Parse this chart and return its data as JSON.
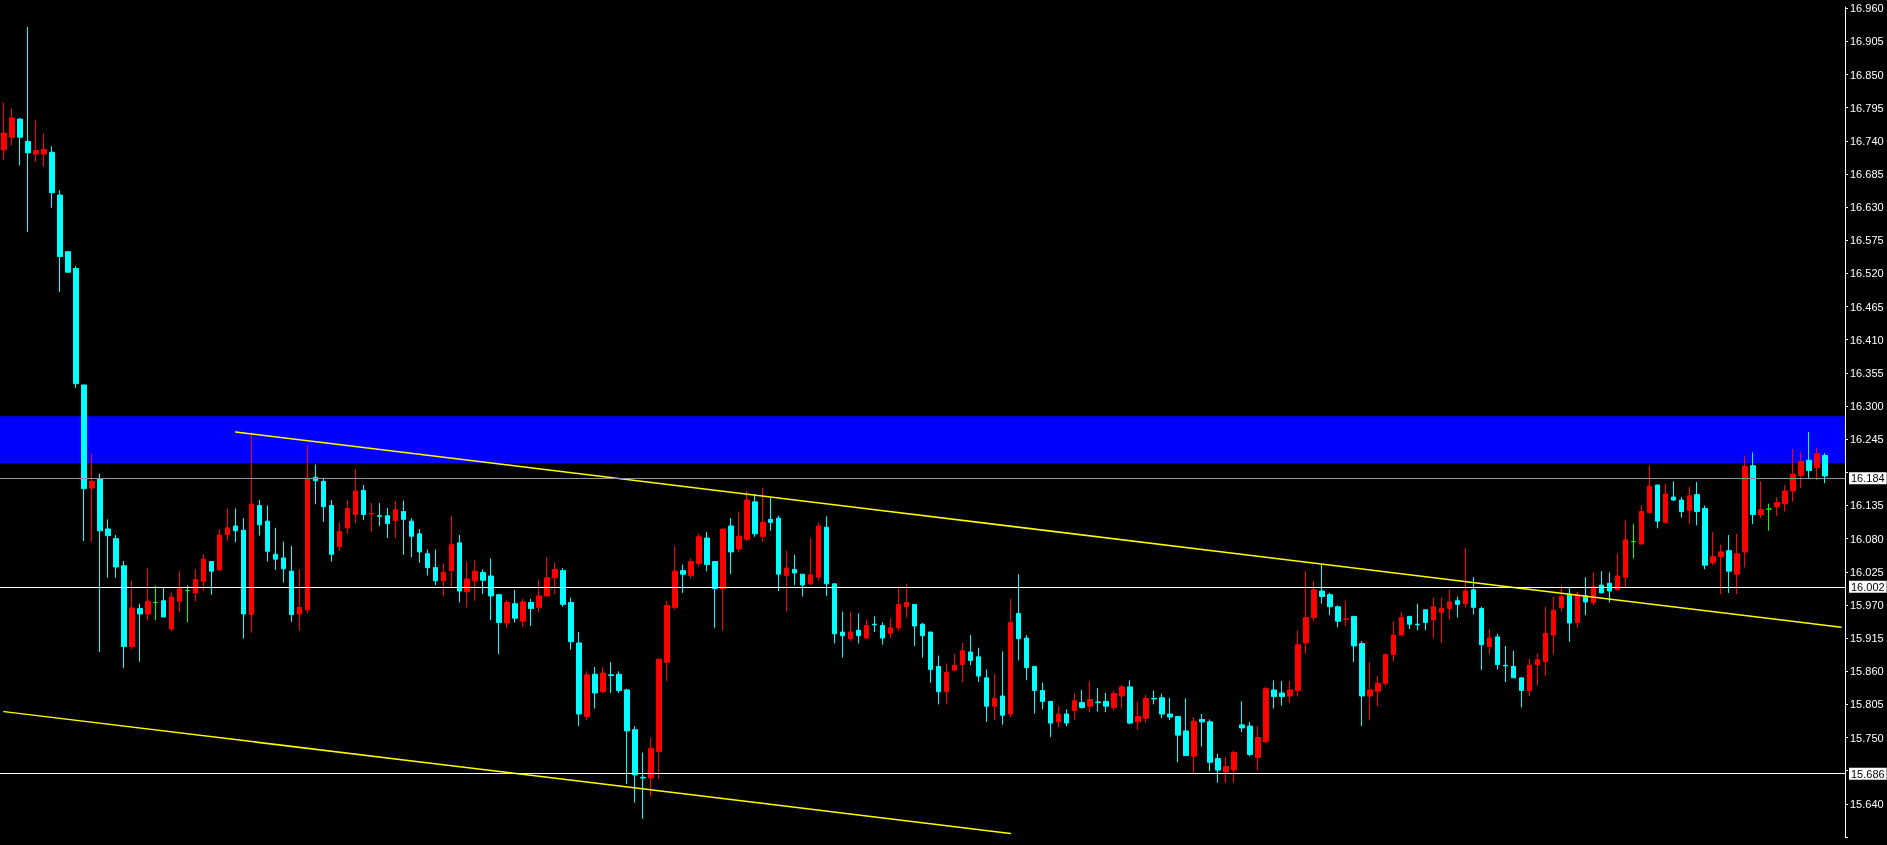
{
  "chart_data": {
    "type": "candlestick",
    "categories": [
      null,
      null,
      null,
      null,
      null,
      null,
      null,
      null,
      null,
      null,
      null,
      null,
      null,
      null,
      null,
      null,
      null,
      null,
      null,
      null,
      null,
      null,
      null,
      null,
      null,
      null,
      null,
      null,
      null,
      null,
      null,
      null,
      null,
      null,
      null,
      null,
      null,
      null,
      null,
      null,
      null,
      null,
      null,
      null,
      null,
      null,
      null,
      null,
      null,
      null,
      null,
      null,
      null,
      null,
      null,
      null,
      null,
      null,
      null,
      null,
      null,
      null,
      null,
      null,
      null,
      null,
      null,
      null,
      null,
      null,
      null,
      null,
      null,
      null,
      null,
      null,
      null,
      null,
      null,
      null,
      null,
      null,
      null,
      null,
      null,
      null,
      null,
      null,
      null,
      null,
      null,
      null,
      null,
      null,
      null,
      null,
      null,
      null,
      null,
      null,
      null,
      null,
      null,
      null,
      null,
      null,
      null,
      null,
      null,
      null,
      null,
      null,
      null,
      null,
      null,
      null,
      null,
      null,
      null,
      null,
      null,
      null,
      null,
      null,
      null,
      null,
      null,
      null,
      null,
      null,
      null,
      null,
      null,
      null,
      null,
      null,
      null,
      null,
      null,
      null,
      null,
      null,
      null,
      null,
      null,
      null,
      null,
      null,
      null,
      null,
      null,
      null,
      null,
      null,
      null,
      null,
      null,
      null,
      null,
      null,
      null,
      null,
      null,
      null,
      null,
      null,
      null,
      null,
      null,
      null,
      null,
      null,
      null,
      null,
      null,
      null,
      null,
      null,
      null,
      null,
      null,
      null,
      null,
      null,
      null,
      null,
      null,
      null,
      null,
      null,
      null,
      null,
      null,
      null,
      null,
      null,
      null,
      null,
      null,
      null,
      null,
      null,
      null,
      null,
      null,
      null,
      null,
      null,
      null,
      null,
      null,
      null,
      null,
      null,
      null,
      null,
      null,
      null,
      null,
      null,
      null,
      null,
      null,
      null,
      null,
      null,
      null,
      null,
      null,
      null,
      null
    ],
    "ohlc": [
      [
        16.725,
        16.804,
        16.708,
        16.753
      ],
      [
        16.746,
        16.794,
        16.732,
        16.778
      ],
      [
        16.776,
        16.778,
        16.699,
        16.746
      ],
      [
        16.739,
        16.929,
        16.589,
        16.72
      ],
      [
        16.718,
        16.775,
        16.705,
        16.724
      ],
      [
        16.718,
        16.752,
        16.697,
        16.726
      ],
      [
        16.721,
        16.731,
        16.629,
        16.654
      ],
      [
        16.65,
        16.658,
        16.489,
        16.548
      ],
      [
        16.556,
        16.556,
        16.522,
        16.522
      ],
      [
        16.528,
        16.532,
        16.33,
        16.337
      ],
      [
        16.335,
        16.335,
        16.076,
        16.163
      ],
      [
        16.164,
        16.221,
        16.075,
        16.175
      ],
      [
        16.179,
        16.188,
        15.892,
        16.093
      ],
      [
        16.096,
        16.112,
        16.015,
        16.085
      ],
      [
        16.08,
        16.086,
        16.015,
        16.033
      ],
      [
        16.035,
        16.043,
        15.865,
        15.901
      ],
      [
        15.901,
        16.01,
        15.896,
        15.965
      ],
      [
        15.964,
        15.972,
        15.876,
        15.955
      ],
      [
        15.955,
        16.031,
        15.944,
        15.976
      ],
      [
        15.974,
        16.002,
        15.945,
        15.974
      ],
      [
        15.977,
        15.998,
        15.95,
        15.95
      ],
      [
        15.93,
        15.991,
        15.927,
        15.983
      ],
      [
        15.976,
        16.026,
        15.958,
        15.997
      ],
      [
        15.994,
        16.002,
        15.941,
        15.994
      ],
      [
        15.99,
        16.029,
        15.976,
        16.012
      ],
      [
        16.009,
        16.054,
        15.994,
        16.046
      ],
      [
        16.042,
        16.042,
        15.987,
        16.026
      ],
      [
        16.028,
        16.096,
        16.026,
        16.086
      ],
      [
        16.087,
        16.13,
        16.076,
        16.098
      ],
      [
        16.101,
        16.13,
        16.074,
        16.093
      ],
      [
        16.094,
        16.114,
        15.914,
        15.955
      ],
      [
        15.954,
        16.256,
        15.924,
        16.137
      ],
      [
        16.135,
        16.144,
        16.085,
        16.103
      ],
      [
        16.109,
        16.135,
        16.042,
        16.059
      ],
      [
        16.054,
        16.098,
        16.028,
        16.046
      ],
      [
        16.048,
        16.075,
        16.007,
        16.03
      ],
      [
        16.026,
        16.068,
        15.942,
        15.954
      ],
      [
        15.955,
        16.029,
        15.927,
        15.966
      ],
      [
        15.962,
        16.235,
        15.956,
        16.18
      ],
      [
        16.182,
        16.203,
        16.137,
        16.176
      ],
      [
        16.175,
        16.181,
        16.108,
        16.133
      ],
      [
        16.135,
        16.144,
        16.042,
        16.054
      ],
      [
        16.067,
        16.107,
        16.06,
        16.092
      ],
      [
        16.098,
        16.144,
        16.088,
        16.13
      ],
      [
        16.12,
        16.195,
        16.106,
        16.159
      ],
      [
        16.16,
        16.169,
        16.111,
        16.12
      ],
      [
        16.121,
        16.139,
        16.091,
        16.122
      ],
      [
        16.118,
        16.139,
        16.101,
        16.117
      ],
      [
        16.118,
        16.131,
        16.081,
        16.105
      ],
      [
        16.11,
        16.143,
        16.081,
        16.128
      ],
      [
        16.125,
        16.143,
        16.053,
        16.112
      ],
      [
        16.109,
        16.114,
        16.049,
        16.084
      ],
      [
        16.088,
        16.096,
        16.04,
        16.058
      ],
      [
        16.055,
        16.062,
        16.019,
        16.032
      ],
      [
        16.032,
        16.062,
        16.003,
        16.01
      ],
      [
        16.01,
        16.039,
        15.984,
        16.024
      ],
      [
        16.027,
        16.118,
        16.0,
        16.07
      ],
      [
        16.073,
        16.086,
        15.974,
        15.993
      ],
      [
        15.992,
        16.042,
        15.966,
        16.013
      ],
      [
        16.01,
        16.044,
        15.977,
        16.026
      ],
      [
        16.024,
        16.029,
        15.988,
        16.011
      ],
      [
        16.018,
        16.047,
        15.945,
        15.985
      ],
      [
        15.987,
        15.988,
        15.888,
        15.941
      ],
      [
        15.94,
        15.979,
        15.932,
        15.974
      ],
      [
        15.972,
        15.995,
        15.941,
        15.948
      ],
      [
        15.943,
        15.98,
        15.933,
        15.975
      ],
      [
        15.974,
        15.98,
        15.935,
        15.964
      ],
      [
        15.966,
        16.011,
        15.958,
        15.985
      ],
      [
        15.985,
        16.049,
        15.984,
        16.015
      ],
      [
        16.015,
        16.04,
        15.988,
        16.029
      ],
      [
        16.027,
        16.031,
        15.967,
        15.971
      ],
      [
        15.974,
        15.982,
        15.896,
        15.909
      ],
      [
        15.907,
        15.925,
        15.769,
        15.789
      ],
      [
        15.785,
        15.86,
        15.779,
        15.854
      ],
      [
        15.855,
        15.867,
        15.798,
        15.824
      ],
      [
        15.826,
        15.867,
        15.824,
        15.857
      ],
      [
        15.854,
        15.875,
        15.824,
        15.853
      ],
      [
        15.855,
        15.86,
        15.824,
        15.828
      ],
      [
        15.829,
        15.831,
        15.673,
        15.761
      ],
      [
        15.763,
        15.769,
        15.642,
        15.688
      ],
      [
        15.684,
        15.725,
        15.615,
        15.683
      ],
      [
        15.683,
        15.75,
        15.652,
        15.732
      ],
      [
        15.727,
        15.881,
        15.681,
        15.88
      ],
      [
        15.875,
        15.977,
        15.844,
        15.969
      ],
      [
        15.966,
        16.068,
        15.962,
        16.026
      ],
      [
        16.027,
        16.037,
        15.99,
        16.021
      ],
      [
        16.019,
        16.047,
        16.014,
        16.042
      ],
      [
        16.039,
        16.088,
        16.034,
        16.083
      ],
      [
        16.081,
        16.091,
        16.026,
        16.037
      ],
      [
        16.042,
        16.042,
        15.932,
        15.997
      ],
      [
        15.997,
        16.096,
        15.927,
        16.096
      ],
      [
        16.101,
        16.114,
        16.021,
        16.058
      ],
      [
        16.063,
        16.125,
        16.058,
        16.084
      ],
      [
        16.079,
        16.159,
        16.076,
        16.144
      ],
      [
        16.141,
        16.154,
        16.083,
        16.088
      ],
      [
        16.084,
        16.164,
        16.075,
        16.107
      ],
      [
        16.112,
        16.148,
        16.093,
        16.107
      ],
      [
        16.114,
        16.118,
        15.993,
        16.021
      ],
      [
        16.019,
        16.06,
        15.959,
        16.031
      ],
      [
        16.029,
        16.053,
        16.003,
        16.023
      ],
      [
        16.021,
        16.021,
        15.984,
        16.003
      ],
      [
        16.005,
        16.081,
        16.003,
        16.02
      ],
      [
        16.016,
        16.107,
        16.01,
        16.101
      ],
      [
        16.099,
        16.117,
        15.985,
        16.005
      ],
      [
        16.005,
        16.006,
        15.906,
        15.922
      ],
      [
        15.925,
        15.959,
        15.883,
        15.919
      ],
      [
        15.914,
        15.959,
        15.91,
        15.925
      ],
      [
        15.928,
        15.956,
        15.906,
        15.919
      ],
      [
        15.915,
        15.946,
        15.914,
        15.936
      ],
      [
        15.938,
        15.951,
        15.925,
        15.937
      ],
      [
        15.936,
        15.941,
        15.904,
        15.915
      ],
      [
        15.923,
        15.948,
        15.915,
        15.932
      ],
      [
        15.932,
        16.001,
        15.927,
        15.971
      ],
      [
        15.967,
        16.005,
        15.949,
        15.974
      ],
      [
        15.971,
        15.971,
        15.902,
        15.935
      ],
      [
        15.938,
        15.94,
        15.883,
        15.919
      ],
      [
        15.925,
        15.925,
        15.841,
        15.863
      ],
      [
        15.868,
        15.886,
        15.805,
        15.826
      ],
      [
        15.826,
        15.873,
        15.805,
        15.858
      ],
      [
        15.862,
        15.889,
        15.86,
        15.87
      ],
      [
        15.871,
        15.907,
        15.842,
        15.894
      ],
      [
        15.892,
        15.92,
        15.87,
        15.878
      ],
      [
        15.884,
        15.899,
        15.842,
        15.852
      ],
      [
        15.849,
        15.863,
        15.776,
        15.802
      ],
      [
        15.802,
        15.855,
        15.779,
        15.815
      ],
      [
        15.819,
        15.893,
        15.771,
        15.787
      ],
      [
        15.789,
        15.98,
        15.784,
        15.941
      ],
      [
        15.956,
        16.021,
        15.878,
        15.914
      ],
      [
        15.915,
        15.92,
        15.845,
        15.866
      ],
      [
        15.868,
        15.868,
        15.79,
        15.828
      ],
      [
        15.828,
        15.841,
        15.797,
        15.81
      ],
      [
        15.81,
        15.811,
        15.751,
        15.774
      ],
      [
        15.776,
        15.802,
        15.767,
        15.789
      ],
      [
        15.789,
        15.797,
        15.769,
        15.774
      ],
      [
        15.795,
        15.824,
        15.779,
        15.811
      ],
      [
        15.808,
        15.829,
        15.798,
        15.8
      ],
      [
        15.802,
        15.844,
        15.792,
        15.813
      ],
      [
        15.809,
        15.832,
        15.793,
        15.808
      ],
      [
        15.81,
        15.824,
        15.792,
        15.802
      ],
      [
        15.8,
        15.828,
        15.795,
        15.823
      ],
      [
        15.819,
        15.837,
        15.798,
        15.834
      ],
      [
        15.834,
        15.845,
        15.772,
        15.774
      ],
      [
        15.776,
        15.81,
        15.763,
        15.785
      ],
      [
        15.782,
        15.821,
        15.774,
        15.815
      ],
      [
        15.815,
        15.828,
        15.805,
        15.814
      ],
      [
        15.816,
        15.823,
        15.782,
        15.789
      ],
      [
        15.789,
        15.816,
        15.779,
        15.784
      ],
      [
        15.785,
        15.785,
        15.709,
        15.754
      ],
      [
        15.761,
        15.815,
        15.72,
        15.72
      ],
      [
        15.719,
        15.784,
        15.691,
        15.777
      ],
      [
        15.78,
        15.789,
        15.735,
        15.776
      ],
      [
        15.776,
        15.78,
        15.694,
        15.709
      ],
      [
        15.715,
        15.723,
        15.675,
        15.696
      ],
      [
        15.693,
        15.717,
        15.675,
        15.702
      ],
      [
        15.696,
        15.728,
        15.675,
        15.725
      ],
      [
        15.771,
        15.81,
        15.759,
        15.766
      ],
      [
        15.769,
        15.776,
        15.719,
        15.722
      ],
      [
        15.717,
        15.769,
        15.696,
        15.75
      ],
      [
        15.743,
        15.834,
        15.741,
        15.831
      ],
      [
        15.829,
        15.845,
        15.798,
        15.818
      ],
      [
        15.824,
        15.844,
        15.803,
        15.818
      ],
      [
        15.819,
        15.844,
        15.808,
        15.829
      ],
      [
        15.828,
        15.928,
        15.818,
        15.904
      ],
      [
        15.907,
        16.026,
        15.889,
        15.949
      ],
      [
        15.949,
        16.01,
        15.943,
        15.995
      ],
      [
        15.993,
        16.037,
        15.972,
        15.984
      ],
      [
        15.987,
        15.99,
        15.953,
        15.967
      ],
      [
        15.967,
        15.969,
        15.933,
        15.943
      ],
      [
        15.946,
        15.977,
        15.935,
        15.947
      ],
      [
        15.951,
        15.951,
        15.875,
        15.902
      ],
      [
        15.906,
        15.91,
        15.769,
        15.819
      ],
      [
        15.819,
        15.875,
        15.78,
        15.829
      ],
      [
        15.827,
        15.852,
        15.802,
        15.84
      ],
      [
        15.84,
        15.889,
        15.836,
        15.888
      ],
      [
        15.888,
        15.943,
        15.876,
        15.92
      ],
      [
        15.92,
        15.959,
        15.919,
        15.949
      ],
      [
        15.951,
        15.951,
        15.93,
        15.938
      ],
      [
        15.938,
        15.972,
        15.928,
        15.937
      ],
      [
        15.962,
        15.962,
        15.928,
        15.941
      ],
      [
        15.945,
        15.982,
        15.915,
        15.967
      ],
      [
        15.958,
        15.982,
        15.907,
        15.964
      ],
      [
        15.964,
        15.995,
        15.946,
        15.975
      ],
      [
        15.977,
        15.984,
        15.949,
        15.971
      ],
      [
        15.972,
        16.065,
        15.966,
        15.993
      ],
      [
        15.995,
        16.016,
        15.954,
        15.966
      ],
      [
        15.964,
        15.967,
        15.862,
        15.904
      ],
      [
        15.901,
        15.93,
        15.888,
        15.915
      ],
      [
        15.917,
        15.922,
        15.863,
        15.871
      ],
      [
        15.87,
        15.902,
        15.842,
        15.869
      ],
      [
        15.868,
        15.894,
        15.849,
        15.849
      ],
      [
        15.849,
        15.85,
        15.8,
        15.828
      ],
      [
        15.828,
        15.881,
        15.819,
        15.87
      ],
      [
        15.871,
        15.889,
        15.836,
        15.879
      ],
      [
        15.876,
        15.967,
        15.852,
        15.923
      ],
      [
        15.92,
        15.984,
        15.888,
        15.961
      ],
      [
        15.966,
        16.002,
        15.959,
        15.984
      ],
      [
        15.988,
        15.998,
        15.909,
        15.94
      ],
      [
        15.941,
        15.992,
        15.932,
        15.987
      ],
      [
        15.985,
        16.016,
        15.953,
        15.975
      ],
      [
        15.974,
        16.024,
        15.969,
        16.0
      ],
      [
        16.003,
        16.026,
        15.99,
        15.99
      ],
      [
        16.006,
        16.024,
        15.974,
        15.993
      ],
      [
        15.995,
        16.055,
        15.995,
        16.018
      ],
      [
        16.016,
        16.11,
        15.998,
        16.078
      ],
      [
        16.075,
        16.104,
        16.047,
        16.075
      ],
      [
        16.071,
        16.135,
        16.071,
        16.125
      ],
      [
        16.123,
        16.201,
        16.122,
        16.167
      ],
      [
        16.169,
        16.169,
        16.097,
        16.109
      ],
      [
        16.107,
        16.171,
        16.105,
        16.154
      ],
      [
        16.149,
        16.175,
        16.143,
        16.144
      ],
      [
        16.144,
        16.149,
        16.115,
        16.125
      ],
      [
        16.127,
        16.166,
        16.104,
        16.151
      ],
      [
        16.153,
        16.174,
        16.102,
        16.125
      ],
      [
        16.13,
        16.135,
        16.029,
        16.036
      ],
      [
        16.04,
        16.091,
        16.036,
        16.05
      ],
      [
        16.05,
        16.07,
        15.988,
        16.058
      ],
      [
        16.06,
        16.086,
        15.99,
        16.026
      ],
      [
        16.021,
        16.088,
        15.988,
        16.055
      ],
      [
        16.058,
        16.218,
        16.032,
        16.2
      ],
      [
        16.201,
        16.223,
        16.104,
        16.12
      ],
      [
        16.12,
        16.175,
        16.114,
        16.128
      ],
      [
        16.129,
        16.138,
        16.093,
        16.129
      ],
      [
        16.133,
        16.149,
        16.117,
        16.14
      ],
      [
        16.138,
        16.169,
        16.125,
        16.159
      ],
      [
        16.159,
        16.229,
        16.141,
        16.187
      ],
      [
        16.185,
        16.223,
        16.164,
        16.208
      ],
      [
        16.21,
        16.257,
        16.179,
        16.193
      ],
      [
        16.198,
        16.231,
        16.177,
        16.221
      ],
      [
        16.218,
        16.222,
        16.172,
        16.184
      ],
      null,
      null
    ],
    "colors": [
      "#ff0000",
      "#ff0000",
      "#00ffff",
      "#00ffff",
      "#ff0000",
      "#ff0000",
      "#00ffff",
      "#00ffff",
      "#00ffff",
      "#00ffff",
      "#00ffff",
      "#ff0000",
      "#00ffff",
      "#00ffff",
      "#00ffff",
      "#00ffff",
      "#ff0000",
      "#00ffff",
      "#ff0000",
      "#00ff00",
      "#00ffff",
      "#ff0000",
      "#ff0000",
      "#00ff00",
      "#ff0000",
      "#ff0000",
      "#00ffff",
      "#ff0000",
      "#ff0000",
      "#00ffff",
      "#00ffff",
      "#ff0000",
      "#00ffff",
      "#00ffff",
      "#00ffff",
      "#00ffff",
      "#00ffff",
      "#ff0000",
      "#ff0000",
      "#00ffff",
      "#00ffff",
      "#00ffff",
      "#ff0000",
      "#ff0000",
      "#ff0000",
      "#00ffff",
      "#ff0000",
      "#00ffff",
      "#00ffff",
      "#ff0000",
      "#00ffff",
      "#00ffff",
      "#00ffff",
      "#00ffff",
      "#00ffff",
      "#ff0000",
      "#ff0000",
      "#00ffff",
      "#ff0000",
      "#ff0000",
      "#00ffff",
      "#00ffff",
      "#00ffff",
      "#ff0000",
      "#00ffff",
      "#ff0000",
      "#00ffff",
      "#ff0000",
      "#ff0000",
      "#ff0000",
      "#00ffff",
      "#00ffff",
      "#00ffff",
      "#ff0000",
      "#00ffff",
      "#ff0000",
      "#00ffff",
      "#00ffff",
      "#00ffff",
      "#00ffff",
      "#00ffff",
      "#ff0000",
      "#ff0000",
      "#ff0000",
      "#ff0000",
      "#00ffff",
      "#ff0000",
      "#ff0000",
      "#00ffff",
      "#00ffff",
      "#ff0000",
      "#00ffff",
      "#ff0000",
      "#ff0000",
      "#00ffff",
      "#ff0000",
      "#00ffff",
      "#00ffff",
      "#ff0000",
      "#00ffff",
      "#00ffff",
      "#ff0000",
      "#ff0000",
      "#00ffff",
      "#00ffff",
      "#00ffff",
      "#ff0000",
      "#00ffff",
      "#ff0000",
      "#00ffff",
      "#00ffff",
      "#ff0000",
      "#ff0000",
      "#ff0000",
      "#00ffff",
      "#00ffff",
      "#00ffff",
      "#00ffff",
      "#ff0000",
      "#ff0000",
      "#ff0000",
      "#00ffff",
      "#00ffff",
      "#00ffff",
      "#ff0000",
      "#00ffff",
      "#ff0000",
      "#00ffff",
      "#00ffff",
      "#00ffff",
      "#00ffff",
      "#00ffff",
      "#ff0000",
      "#00ffff",
      "#ff0000",
      "#00ffff",
      "#ff0000",
      "#00ffff",
      "#00ffff",
      "#ff0000",
      "#ff0000",
      "#00ffff",
      "#ff0000",
      "#ff0000",
      "#00ffff",
      "#00ffff",
      "#00ffff",
      "#00ffff",
      "#00ffff",
      "#ff0000",
      "#00ffff",
      "#00ffff",
      "#00ffff",
      "#ff0000",
      "#ff0000",
      "#00ffff",
      "#00ffff",
      "#ff0000",
      "#ff0000",
      "#00ffff",
      "#00ffff",
      "#ff0000",
      "#ff0000",
      "#ff0000",
      "#ff0000",
      "#00ffff",
      "#00ffff",
      "#00ffff",
      "#ff0000",
      "#00ffff",
      "#00ffff",
      "#ff0000",
      "#ff0000",
      "#ff0000",
      "#ff0000",
      "#ff0000",
      "#00ffff",
      "#00ffff",
      "#00ffff",
      "#ff0000",
      "#ff0000",
      "#ff0000",
      "#00ffff",
      "#ff0000",
      "#00ffff",
      "#00ffff",
      "#ff0000",
      "#00ffff",
      "#00ffff",
      "#00ffff",
      "#00ffff",
      "#ff0000",
      "#ff0000",
      "#ff0000",
      "#ff0000",
      "#ff0000",
      "#00ffff",
      "#ff0000",
      "#00ffff",
      "#ff0000",
      "#00ffff",
      "#00ffff",
      "#ff0000",
      "#ff0000",
      "#00ff00",
      "#ff0000",
      "#ff0000",
      "#00ffff",
      "#ff0000",
      "#00ffff",
      "#00ffff",
      "#ff0000",
      "#00ffff",
      "#00ffff",
      "#ff0000",
      "#ff0000",
      "#00ffff",
      "#ff0000",
      "#ff0000",
      "#00ffff",
      "#ff0000",
      "#00ff00",
      "#ff0000",
      "#ff0000",
      "#ff0000",
      "#ff0000",
      "#00ffff",
      "#ff0000",
      "#00ffff",
      null,
      null
    ],
    "series": [
      {
        "type": "line",
        "color": "#ffff00",
        "values": [
          null,
          null,
          null,
          null,
          null,
          null,
          null,
          null,
          null,
          null,
          null,
          null,
          null,
          null,
          null,
          null,
          null,
          null,
          null,
          null,
          null,
          null,
          null,
          null,
          null,
          null,
          null,
          null,
          null,
          16.257,
          null,
          null,
          null,
          null,
          null,
          null,
          null,
          null,
          null,
          null,
          null,
          null,
          null,
          null,
          null,
          null,
          null,
          null,
          null,
          null,
          null,
          null,
          null,
          null,
          null,
          null,
          null,
          null,
          null,
          null,
          null,
          null,
          null,
          null,
          null,
          null,
          null,
          null,
          null,
          null,
          null,
          null,
          null,
          null,
          null,
          null,
          null,
          null,
          null,
          null,
          null,
          null,
          null,
          null,
          null,
          null,
          null,
          null,
          null,
          null,
          null,
          null,
          null,
          null,
          null,
          null,
          null,
          null,
          null,
          null,
          null,
          null,
          null,
          null,
          null,
          null,
          null,
          null,
          null,
          null,
          null,
          null,
          null,
          null,
          null,
          null,
          null,
          null,
          null,
          null,
          null,
          null,
          null,
          null,
          null,
          null,
          null,
          null,
          null,
          null,
          null,
          null,
          null,
          null,
          null,
          null,
          null,
          null,
          null,
          null,
          null,
          null,
          null,
          null,
          null,
          null,
          null,
          null,
          null,
          null,
          null,
          null,
          null,
          null,
          null,
          null,
          null,
          null,
          null,
          null,
          null,
          null,
          null,
          null,
          null,
          null,
          null,
          null,
          null,
          null,
          null,
          null,
          null,
          null,
          null,
          null,
          null,
          null,
          null,
          null,
          null,
          null,
          null,
          null,
          null,
          null,
          null,
          null,
          null,
          null,
          null,
          null,
          null,
          null,
          null,
          null,
          null,
          null,
          null,
          null,
          null,
          null,
          null,
          null,
          null,
          null,
          null,
          null,
          null,
          null,
          null,
          null,
          null,
          null,
          null,
          null,
          null,
          null,
          null,
          null,
          null,
          null,
          null,
          null,
          null,
          null,
          null,
          null,
          null,
          null,
          15.933
        ]
      },
      {
        "type": "line",
        "color": "#ffff00",
        "values": [
          15.793,
          null,
          null,
          null,
          null,
          null,
          null,
          null,
          null,
          null,
          null,
          null,
          null,
          null,
          null,
          null,
          null,
          null,
          null,
          null,
          null,
          null,
          null,
          null,
          null,
          null,
          null,
          null,
          null,
          null,
          null,
          null,
          null,
          null,
          null,
          null,
          null,
          null,
          null,
          null,
          null,
          null,
          null,
          null,
          null,
          null,
          null,
          null,
          null,
          null,
          null,
          null,
          null,
          null,
          null,
          null,
          null,
          null,
          null,
          null,
          null,
          null,
          null,
          null,
          null,
          null,
          null,
          null,
          null,
          null,
          null,
          null,
          null,
          null,
          null,
          null,
          null,
          null,
          null,
          null,
          null,
          null,
          null,
          null,
          null,
          null,
          null,
          null,
          null,
          null,
          null,
          null,
          null,
          null,
          null,
          null,
          null,
          null,
          null,
          null,
          null,
          null,
          null,
          null,
          null,
          null,
          null,
          null,
          null,
          null,
          null,
          null,
          null,
          null,
          null,
          null,
          null,
          null,
          null,
          null,
          null,
          null,
          null,
          null,
          null,
          null,
          15.591,
          null,
          null,
          null,
          null,
          null,
          null,
          null,
          null,
          null,
          null,
          null,
          null,
          null,
          null,
          null,
          null,
          null,
          null,
          null,
          null,
          null,
          null,
          null,
          null,
          null,
          null,
          null,
          null,
          null,
          null,
          null,
          null,
          null,
          null,
          null,
          null,
          null,
          null,
          null,
          null,
          null,
          null,
          null,
          null,
          null,
          null,
          null,
          null,
          null,
          null,
          null,
          null,
          null,
          null,
          null,
          null,
          null,
          null,
          null,
          null,
          null,
          null,
          null,
          null,
          null,
          null,
          null,
          null,
          null,
          null,
          null,
          null,
          null,
          null,
          null,
          null,
          null,
          null,
          null,
          null,
          null,
          null,
          null,
          null,
          null,
          null,
          null,
          null,
          null,
          null,
          null,
          null,
          null,
          null,
          null,
          null,
          null,
          null,
          null,
          null,
          null,
          null,
          null,
          null
        ]
      }
    ],
    "ylim": [
      15.585,
      16.962
    ],
    "yticks": [
      {
        "value": 16.96,
        "label": "16.960"
      },
      16.905,
      {
        "value": 16.85,
        "label": "16.850"
      },
      16.795,
      {
        "value": 16.74,
        "label": "16.740"
      },
      16.685,
      {
        "value": 16.63,
        "label": "16.630"
      },
      16.575,
      {
        "value": 16.52,
        "label": "16.520"
      },
      16.465,
      {
        "value": 16.41,
        "label": "16.410"
      },
      16.355,
      {
        "value": 16.3,
        "label": "16.300"
      },
      16.245,
      {
        "value": 16.19,
        "label": null
      },
      16.135,
      {
        "value": 16.08,
        "label": "16.080"
      },
      16.025,
      {
        "value": 15.97,
        "label": "15.970"
      },
      15.915,
      {
        "value": 15.86,
        "label": "15.860"
      },
      15.805,
      {
        "value": 15.75,
        "label": "15.750"
      },
      {
        "value": 15.695,
        "label": null
      },
      {
        "value": 15.64,
        "label": "15.640"
      },
      {
        "value": 15.585,
        "label": null
      }
    ],
    "ref_lines": [
      {
        "axis": "y",
        "value": 16.184,
        "label": "16.184",
        "color": "#8c96a0"
      },
      {
        "axis": "y",
        "value": 16.002,
        "label": "16.002",
        "color": "#ffffff"
      },
      {
        "axis": "y",
        "value": 15.686,
        "label": "15.686",
        "color": "#ffffff"
      }
    ],
    "bands": [
      {
        "axis": "y",
        "from": 16.205,
        "to": 16.283,
        "color": "#0000ff"
      }
    ]
  }
}
